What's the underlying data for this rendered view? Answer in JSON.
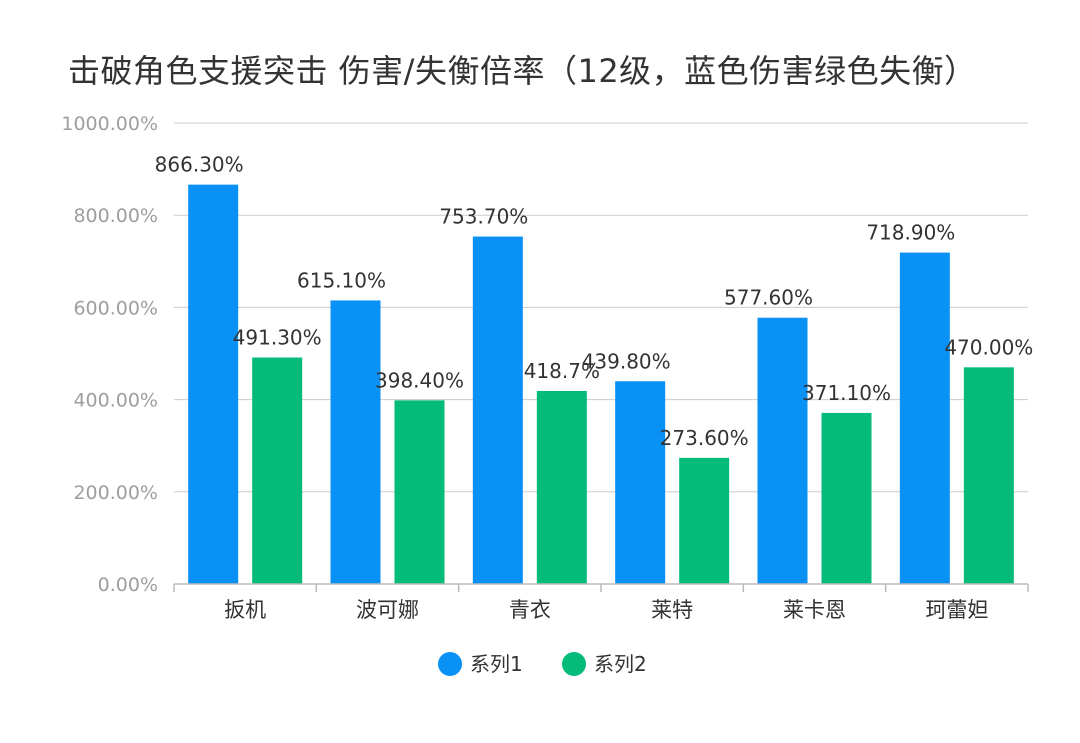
{
  "chart_data": {
    "type": "bar",
    "title": "击破角色支援突击 伤害/失衡倍率（12级，蓝色伤害绿色失衡）",
    "categories": [
      "扳机",
      "波可娜",
      "青衣",
      "莱特",
      "莱卡恩",
      "珂蕾妲"
    ],
    "series": [
      {
        "name": "系列1",
        "color": "#0a91f5",
        "values": [
          866.3,
          615.1,
          753.7,
          439.8,
          577.6,
          718.9
        ],
        "labels": [
          "866.30%",
          "615.10%",
          "753.70%",
          "439.80%",
          "577.60%",
          "718.90%"
        ]
      },
      {
        "name": "系列2",
        "color": "#05bb79",
        "values": [
          491.3,
          398.4,
          418.7,
          273.6,
          371.1,
          470.0
        ],
        "labels": [
          "491.30%",
          "398.40%",
          "418.7%",
          "273.60%",
          "371.10%",
          "470.00%"
        ]
      }
    ],
    "ylim": [
      0,
      1000
    ],
    "yticks": [
      0,
      200,
      400,
      600,
      800,
      1000
    ],
    "ytick_labels": [
      "0.00%",
      "200.00%",
      "400.00%",
      "600.00%",
      "800.00%",
      "1000.00%"
    ],
    "grid": true,
    "legend_position": "bottom",
    "colors": {
      "grid": "#cccccc",
      "axis": "#bbbbbb"
    }
  }
}
